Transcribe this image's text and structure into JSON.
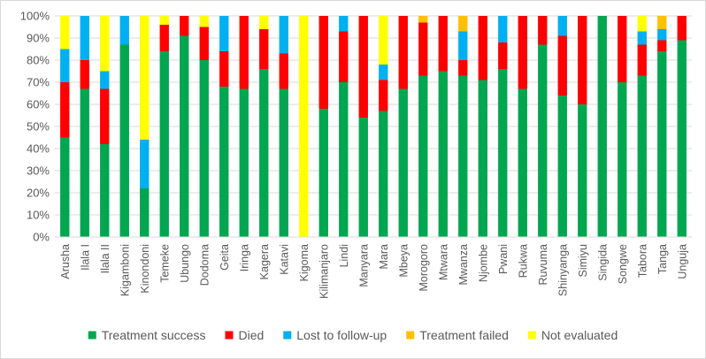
{
  "chart_data": {
    "type": "bar",
    "stacked": true,
    "title": "",
    "xlabel": "",
    "ylabel": "",
    "ylim": [
      0,
      100
    ],
    "y_ticks": [
      "0%",
      "10%",
      "20%",
      "30%",
      "40%",
      "50%",
      "60%",
      "70%",
      "80%",
      "90%",
      "100%"
    ],
    "grid": true,
    "legend_position": "bottom",
    "categories": [
      "Arusha",
      "Ilala I",
      "Ilala II",
      "Kigamboni",
      "Kinondoni",
      "Temeke",
      "Ubungo",
      "Dodoma",
      "Geita",
      "Iringa",
      "Kagera",
      "Katavi",
      "Kigoma",
      "Kilimanjaro",
      "Lindi",
      "Manyara",
      "Mara",
      "Mbeya",
      "Morogoro",
      "Mtwara",
      "Mwanza",
      "Njombe",
      "Pwani",
      "Rukwa",
      "Ruvuma",
      "Shinyanga",
      "Simiyu",
      "Singida",
      "Songwe",
      "Tabora",
      "Tanga",
      "Unguja"
    ],
    "series": [
      {
        "name": "Treatment success",
        "color": "#00a650",
        "values": [
          45,
          67,
          42,
          87,
          22,
          84,
          91,
          80,
          68,
          67,
          76,
          67,
          0,
          58,
          70,
          54,
          57,
          67,
          73,
          75,
          73,
          71,
          76,
          67,
          87,
          64,
          60,
          100,
          70,
          73,
          84,
          89
        ]
      },
      {
        "name": "Died",
        "color": "#ff0000",
        "values": [
          25,
          13,
          25,
          0,
          0,
          12,
          9,
          15,
          16,
          33,
          18,
          16,
          0,
          42,
          23,
          46,
          14,
          33,
          24,
          25,
          7,
          29,
          12,
          33,
          13,
          27,
          40,
          0,
          30,
          14,
          5,
          11
        ]
      },
      {
        "name": "Lost to follow-up",
        "color": "#00b0f0",
        "values": [
          15,
          20,
          8,
          13,
          22,
          0,
          0,
          0,
          16,
          0,
          0,
          17,
          0,
          0,
          7,
          0,
          7,
          0,
          0,
          0,
          13,
          0,
          12,
          0,
          0,
          9,
          0,
          0,
          0,
          6,
          5,
          0
        ]
      },
      {
        "name": "Treatment failed",
        "color": "#ffc000",
        "values": [
          0,
          0,
          0,
          0,
          0,
          0,
          0,
          0,
          0,
          0,
          0,
          0,
          0,
          0,
          0,
          0,
          0,
          0,
          3,
          0,
          7,
          0,
          0,
          0,
          0,
          0,
          0,
          0,
          0,
          0,
          6,
          0
        ]
      },
      {
        "name": "Not evaluated",
        "color": "#ffff00",
        "values": [
          15,
          0,
          25,
          0,
          56,
          4,
          0,
          5,
          0,
          0,
          6,
          0,
          100,
          0,
          0,
          0,
          22,
          0,
          0,
          0,
          0,
          0,
          0,
          0,
          0,
          0,
          0,
          0,
          0,
          7,
          0,
          0
        ]
      }
    ]
  }
}
